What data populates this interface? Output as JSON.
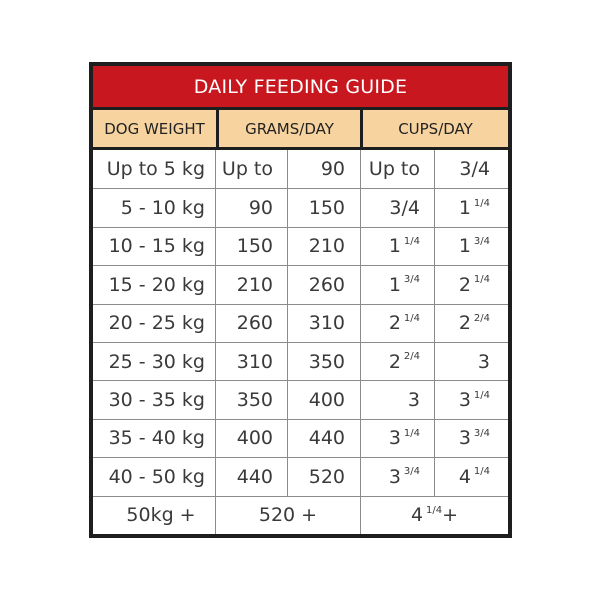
{
  "title": "DAILY FEEDING GUIDE",
  "headers": {
    "weight": "DOG WEIGHT",
    "grams": "GRAMS/DAY",
    "cups": "CUPS/DAY"
  },
  "rows": [
    {
      "weight": "Up to 5 kg",
      "g_min": "Up to",
      "g_max": "90",
      "c_min": "Up to",
      "c_min_frac": "",
      "c_max": "3/4",
      "c_max_frac": ""
    },
    {
      "weight": "5 - 10 kg",
      "g_min": "90",
      "g_max": "150",
      "c_min": "3/4",
      "c_min_frac": "",
      "c_max": "1",
      "c_max_frac": "1/4"
    },
    {
      "weight": "10 - 15 kg",
      "g_min": "150",
      "g_max": "210",
      "c_min": "1",
      "c_min_frac": "1/4",
      "c_max": "1",
      "c_max_frac": "3/4"
    },
    {
      "weight": "15 - 20 kg",
      "g_min": "210",
      "g_max": "260",
      "c_min": "1",
      "c_min_frac": "3/4",
      "c_max": "2",
      "c_max_frac": "1/4"
    },
    {
      "weight": "20 - 25 kg",
      "g_min": "260",
      "g_max": "310",
      "c_min": "2",
      "c_min_frac": "1/4",
      "c_max": "2",
      "c_max_frac": "2/4"
    },
    {
      "weight": "25 - 30 kg",
      "g_min": "310",
      "g_max": "350",
      "c_min": "2",
      "c_min_frac": "2/4",
      "c_max": "3",
      "c_max_frac": ""
    },
    {
      "weight": "30 - 35 kg",
      "g_min": "350",
      "g_max": "400",
      "c_min": "3",
      "c_min_frac": "",
      "c_max": "3",
      "c_max_frac": "1/4"
    },
    {
      "weight": "35 - 40 kg",
      "g_min": "400",
      "g_max": "440",
      "c_min": "3",
      "c_min_frac": "1/4",
      "c_max": "3",
      "c_max_frac": "3/4"
    },
    {
      "weight": "40 - 50 kg",
      "g_min": "440",
      "g_max": "520",
      "c_min": "3",
      "c_min_frac": "3/4",
      "c_max": "4",
      "c_max_frac": "1/4"
    }
  ],
  "last_row": {
    "weight": "50kg +",
    "grams": "520 +",
    "cups": "4",
    "cups_frac": "1/4",
    "cups_suffix": "+"
  },
  "colors": {
    "title_bg": "#c8171e",
    "header_bg": "#f7d39f",
    "frame": "#1e1e1e",
    "grid_line": "#8c8c8c"
  }
}
